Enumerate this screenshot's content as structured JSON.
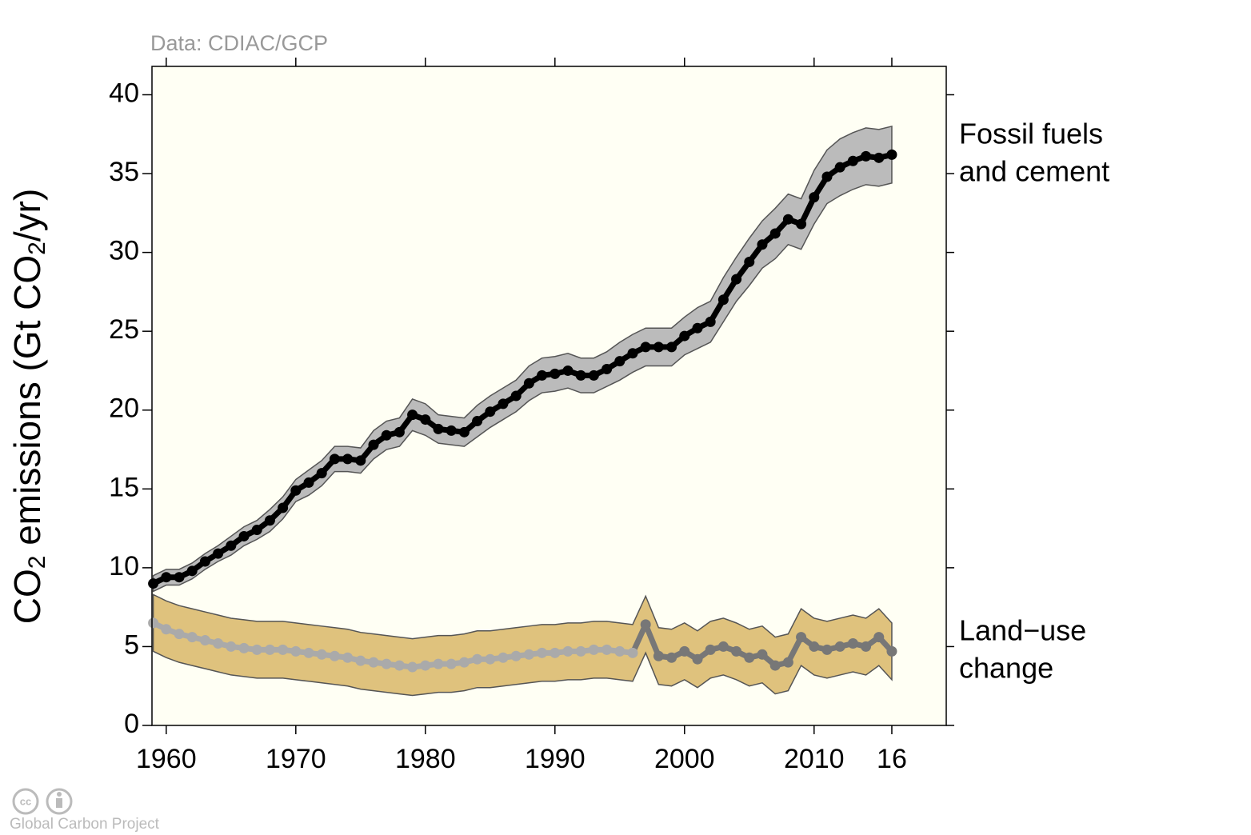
{
  "chart_data": {
    "type": "line",
    "source": "Data: CDIAC/GCP",
    "footer": "Global Carbon Project",
    "ylabel": [
      "CO",
      "2",
      " emissions (Gt CO",
      "2",
      "/yr)"
    ],
    "x": [
      1959,
      1960,
      1961,
      1962,
      1963,
      1964,
      1965,
      1966,
      1967,
      1968,
      1969,
      1970,
      1971,
      1972,
      1973,
      1974,
      1975,
      1976,
      1977,
      1978,
      1979,
      1980,
      1981,
      1982,
      1983,
      1984,
      1985,
      1986,
      1987,
      1988,
      1989,
      1990,
      1991,
      1992,
      1993,
      1994,
      1995,
      1996,
      1997,
      1998,
      1999,
      2000,
      2001,
      2002,
      2003,
      2004,
      2005,
      2006,
      2007,
      2008,
      2009,
      2010,
      2011,
      2012,
      2013,
      2014,
      2015,
      2016
    ],
    "xlim": [
      1958.9,
      2020.2
    ],
    "xticks": [
      1960,
      1970,
      1980,
      1990,
      2000,
      2010,
      {
        "value": 2016,
        "label": "16"
      }
    ],
    "ylim": [
      0,
      41.8
    ],
    "yticks": [
      0,
      5,
      10,
      15,
      20,
      25,
      30,
      35,
      40
    ],
    "background": "#fffff4",
    "series": [
      {
        "name": [
          "Fossil fuels",
          "and cement"
        ],
        "color": "#000000",
        "band_color": "#bbbbbb",
        "values": [
          9.0,
          9.4,
          9.4,
          9.8,
          10.4,
          10.9,
          11.4,
          12.0,
          12.4,
          13.0,
          13.8,
          14.9,
          15.4,
          16.0,
          16.9,
          16.9,
          16.8,
          17.8,
          18.4,
          18.6,
          19.7,
          19.4,
          18.8,
          18.7,
          18.6,
          19.3,
          19.9,
          20.4,
          20.9,
          21.7,
          22.2,
          22.3,
          22.5,
          22.2,
          22.2,
          22.6,
          23.1,
          23.6,
          24.0,
          24.0,
          24.0,
          24.7,
          25.2,
          25.6,
          27.0,
          28.3,
          29.4,
          30.5,
          31.2,
          32.1,
          31.8,
          33.5,
          34.8,
          35.4,
          35.8,
          36.1,
          36.0,
          36.2
        ],
        "errors": [
          0.5,
          0.5,
          0.5,
          0.5,
          0.5,
          0.5,
          0.6,
          0.6,
          0.6,
          0.7,
          0.7,
          0.7,
          0.8,
          0.8,
          0.8,
          0.8,
          0.8,
          0.9,
          0.9,
          0.9,
          1.0,
          1.0,
          0.9,
          0.9,
          0.9,
          1.0,
          1.0,
          1.0,
          1.0,
          1.1,
          1.1,
          1.1,
          1.1,
          1.1,
          1.1,
          1.1,
          1.2,
          1.2,
          1.2,
          1.2,
          1.2,
          1.2,
          1.3,
          1.3,
          1.4,
          1.4,
          1.5,
          1.5,
          1.6,
          1.6,
          1.6,
          1.7,
          1.7,
          1.8,
          1.8,
          1.8,
          1.8,
          1.8
        ]
      },
      {
        "name": [
          "Land−use",
          "change"
        ],
        "band_color": "#dfc27d",
        "segments": [
          {
            "from": 1959,
            "to": 1996,
            "color": "#aaaaaa"
          },
          {
            "from": 1996,
            "to": 2016,
            "color": "#777777"
          }
        ],
        "values": [
          6.5,
          6.1,
          5.8,
          5.6,
          5.4,
          5.2,
          5.0,
          4.9,
          4.8,
          4.8,
          4.8,
          4.7,
          4.6,
          4.5,
          4.4,
          4.3,
          4.1,
          4.0,
          3.9,
          3.8,
          3.7,
          3.8,
          3.9,
          3.9,
          4.0,
          4.2,
          4.2,
          4.3,
          4.4,
          4.5,
          4.6,
          4.6,
          4.7,
          4.7,
          4.8,
          4.8,
          4.7,
          4.6,
          6.4,
          4.4,
          4.3,
          4.7,
          4.2,
          4.8,
          5.0,
          4.7,
          4.3,
          4.5,
          3.8,
          4.0,
          5.6,
          5.0,
          4.8,
          5.0,
          5.2,
          5.0,
          5.6,
          4.7
        ],
        "errors": [
          1.8,
          1.8,
          1.8,
          1.8,
          1.8,
          1.8,
          1.8,
          1.8,
          1.8,
          1.8,
          1.8,
          1.8,
          1.8,
          1.8,
          1.8,
          1.8,
          1.8,
          1.8,
          1.8,
          1.8,
          1.8,
          1.8,
          1.8,
          1.8,
          1.8,
          1.8,
          1.8,
          1.8,
          1.8,
          1.8,
          1.8,
          1.8,
          1.8,
          1.8,
          1.8,
          1.8,
          1.8,
          1.8,
          1.8,
          1.8,
          1.8,
          1.8,
          1.8,
          1.8,
          1.8,
          1.8,
          1.8,
          1.8,
          1.8,
          1.8,
          1.8,
          1.8,
          1.8,
          1.8,
          1.8,
          1.8,
          1.8,
          1.8
        ]
      }
    ]
  }
}
